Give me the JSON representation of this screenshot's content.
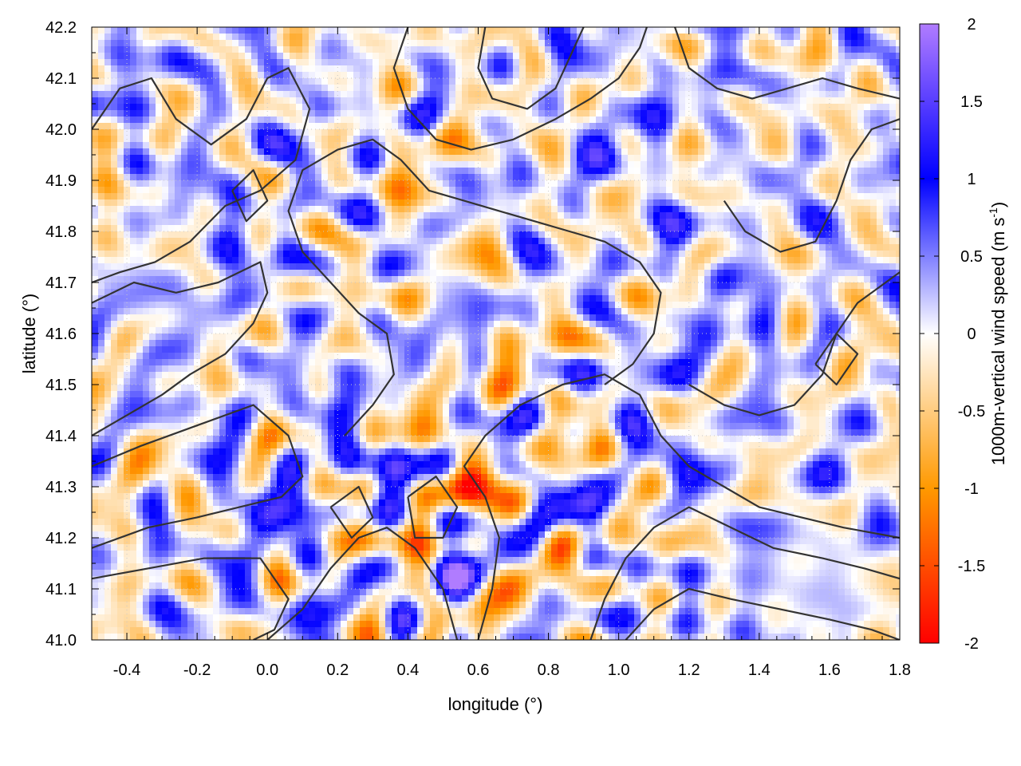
{
  "chart_data": {
    "type": "heatmap",
    "title": "",
    "xlabel": "longitude (°)",
    "ylabel": "latitude (°)",
    "xlim": [
      -0.5,
      1.8
    ],
    "ylim": [
      41.0,
      42.2
    ],
    "x_ticks": [
      "-0.4",
      "-0.2",
      "0.0",
      "0.2",
      "0.4",
      "0.6",
      "0.8",
      "1.0",
      "1.2",
      "1.4",
      "1.6",
      "1.8"
    ],
    "y_ticks": [
      "41.0",
      "41.1",
      "41.2",
      "41.3",
      "41.4",
      "41.5",
      "41.6",
      "41.7",
      "41.8",
      "41.9",
      "42.0",
      "42.1",
      "42.2"
    ],
    "grid": true,
    "colorbar": {
      "label_main": "1000m-vertical wind speed (m s",
      "label_sup": "-1",
      "label_end": ")",
      "range": [
        -2,
        2
      ],
      "ticks": [
        "2",
        "1.5",
        "1",
        "0.5",
        "0",
        "-0.5",
        "-1",
        "-1.5",
        "-2"
      ],
      "colors": {
        "max": "#b07cff",
        "high": "#0000ff",
        "zero": "#ffffff",
        "low": "#ff9900",
        "min": "#ff0000"
      }
    },
    "contour_color": "#333333"
  }
}
